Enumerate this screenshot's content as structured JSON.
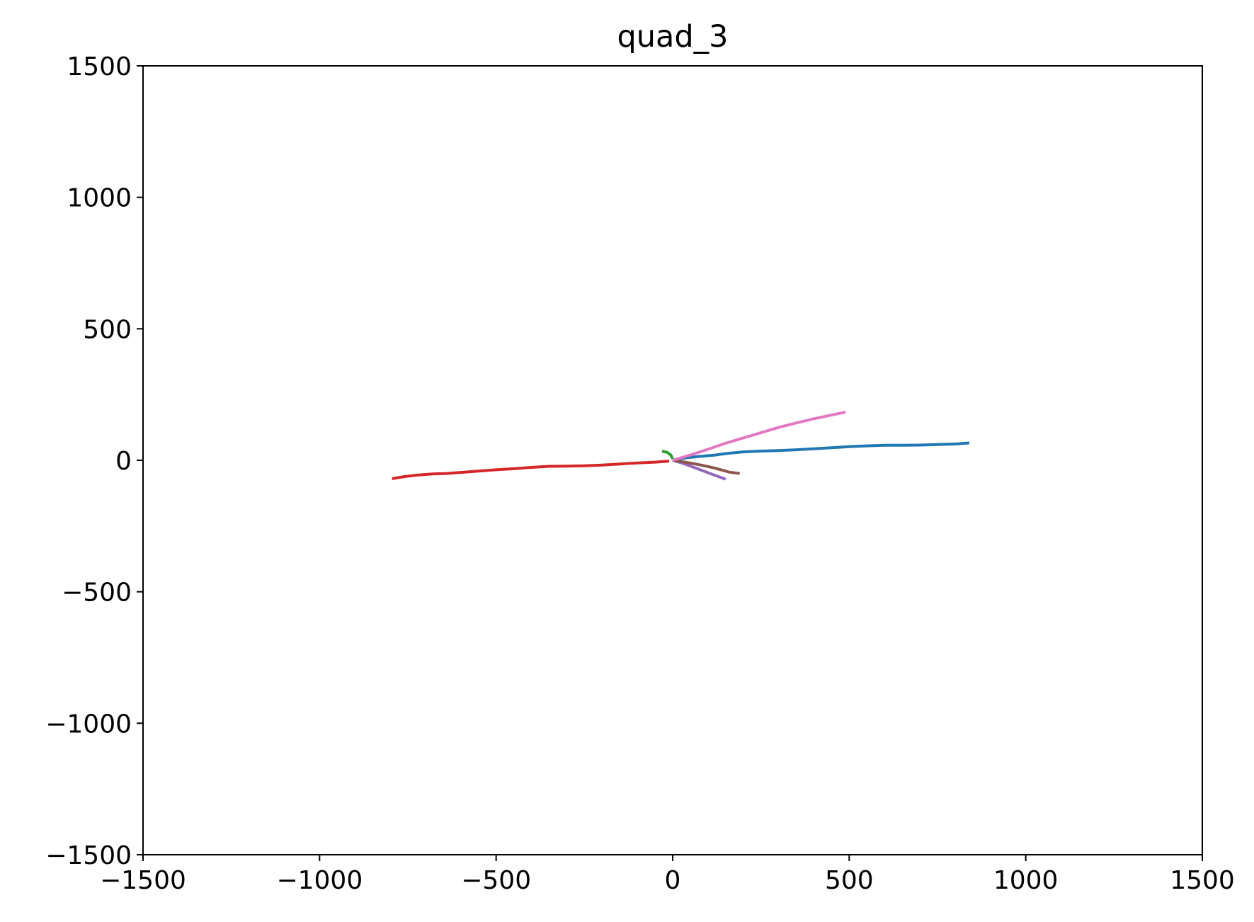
{
  "chart_data": {
    "type": "line",
    "title": "quad_3",
    "xlabel": "",
    "ylabel": "",
    "xlim": [
      -1500,
      1500
    ],
    "ylim": [
      -1500,
      1500
    ],
    "grid": false,
    "legend": "none",
    "x_ticks": [
      -1500,
      -1000,
      -500,
      0,
      500,
      1000,
      1500
    ],
    "y_ticks": [
      -1500,
      -1000,
      -500,
      0,
      500,
      1000,
      1500
    ],
    "x_tick_labels": [
      "−1500",
      "−1000",
      "−500",
      "0",
      "500",
      "1000",
      "1500"
    ],
    "y_tick_labels": [
      "−1500",
      "−1000",
      "−500",
      "0",
      "500",
      "1000",
      "1500"
    ],
    "series": [
      {
        "color": "#1f77b4",
        "x": [
          0,
          40,
          80,
          120,
          160,
          200,
          250,
          300,
          350,
          400,
          450,
          500,
          550,
          600,
          650,
          700,
          750,
          800,
          840
        ],
        "y": [
          0,
          10,
          15,
          20,
          27,
          32,
          35,
          37,
          40,
          44,
          48,
          52,
          55,
          57,
          57,
          58,
          60,
          62,
          66
        ]
      },
      {
        "color": "#2ca02c",
        "x": [
          -30,
          -15,
          -5,
          0
        ],
        "y": [
          35,
          30,
          20,
          5
        ]
      },
      {
        "color": "#d62728",
        "x": [
          -795,
          -760,
          -720,
          -680,
          -640,
          -600,
          -550,
          -500,
          -450,
          -400,
          -350,
          -300,
          -250,
          -200,
          -150,
          -100,
          -50,
          -10
        ],
        "y": [
          -70,
          -62,
          -56,
          -52,
          -50,
          -46,
          -41,
          -36,
          -32,
          -27,
          -23,
          -22,
          -21,
          -18,
          -14,
          -10,
          -7,
          -3
        ]
      },
      {
        "color": "#9467bd",
        "x": [
          0,
          30,
          60,
          90,
          120,
          150
        ],
        "y": [
          0,
          -12,
          -27,
          -42,
          -57,
          -72
        ]
      },
      {
        "color": "#8c564b",
        "x": [
          0,
          40,
          80,
          120,
          160,
          190
        ],
        "y": [
          0,
          -8,
          -18,
          -30,
          -45,
          -50
        ]
      },
      {
        "color": "#e377c2",
        "x": [
          0,
          50,
          100,
          150,
          200,
          250,
          300,
          350,
          400,
          450,
          490
        ],
        "y": [
          0,
          20,
          42,
          65,
          85,
          105,
          125,
          142,
          158,
          172,
          183
        ]
      }
    ]
  }
}
